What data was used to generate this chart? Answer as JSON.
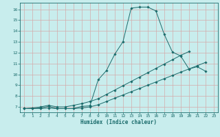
{
  "title": "",
  "xlabel": "Humidex (Indice chaleur)",
  "background_color": "#c8eded",
  "grid_color": "#d4aaaa",
  "line_color": "#1a6b6b",
  "xlim": [
    -0.5,
    23.5
  ],
  "ylim": [
    6.5,
    16.6
  ],
  "xticks": [
    0,
    1,
    2,
    3,
    4,
    5,
    6,
    7,
    8,
    9,
    10,
    11,
    12,
    13,
    14,
    15,
    16,
    17,
    18,
    19,
    20,
    21,
    22,
    23
  ],
  "yticks": [
    7,
    8,
    9,
    10,
    11,
    12,
    13,
    14,
    15,
    16
  ],
  "curve1_x": [
    0,
    1,
    2,
    3,
    4,
    5,
    6,
    7,
    8,
    9,
    10,
    11,
    12,
    13,
    14,
    15,
    16,
    17,
    18,
    19,
    20,
    21,
    22
  ],
  "curve1_y": [
    6.85,
    6.85,
    6.9,
    7.05,
    6.85,
    6.85,
    6.85,
    7.05,
    7.1,
    9.5,
    10.35,
    11.85,
    13.0,
    16.1,
    16.2,
    16.2,
    15.85,
    13.7,
    12.05,
    11.7,
    10.5,
    10.7,
    10.3
  ],
  "curve2_x": [
    0,
    1,
    2,
    3,
    4,
    5,
    6,
    7,
    8,
    9,
    10,
    11,
    12,
    13,
    14,
    15,
    16,
    17,
    18,
    19,
    20
  ],
  "curve2_y": [
    6.85,
    6.9,
    7.0,
    7.15,
    7.0,
    7.0,
    7.15,
    7.3,
    7.5,
    7.75,
    8.15,
    8.55,
    8.95,
    9.35,
    9.75,
    10.15,
    10.55,
    10.95,
    11.35,
    11.75,
    12.1
  ],
  "curve3_x": [
    0,
    1,
    2,
    3,
    4,
    5,
    6,
    7,
    8,
    9,
    10,
    11,
    12,
    13,
    14,
    15,
    16,
    17,
    18,
    19,
    20,
    21,
    22
  ],
  "curve3_y": [
    6.85,
    6.85,
    6.85,
    6.9,
    6.85,
    6.85,
    6.85,
    6.9,
    7.0,
    7.2,
    7.5,
    7.8,
    8.1,
    8.4,
    8.7,
    9.0,
    9.3,
    9.6,
    9.9,
    10.2,
    10.5,
    10.8,
    11.1
  ]
}
